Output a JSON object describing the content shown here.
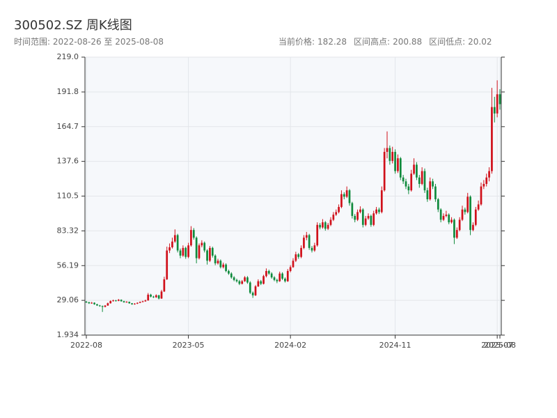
{
  "chart_data": {
    "type": "candlestick",
    "title": "300502.SZ 周K线图",
    "range_text": "时间范围: 2022-08-26 至 2025-08-08",
    "stats": [
      {
        "label": "当前价格:",
        "value": 182.28
      },
      {
        "label": "区间高点:",
        "value": 200.88
      },
      {
        "label": "区间低点:",
        "value": 20.02
      }
    ],
    "up_color": "#d0101a",
    "down_color": "#0f8a3c",
    "grid": true,
    "xlim": [
      0,
      154
    ],
    "xticks": [
      {
        "value": 0,
        "label": "2022-08"
      },
      {
        "value": 38,
        "label": "2023-05"
      },
      {
        "value": 76,
        "label": "2024-02"
      },
      {
        "value": 115,
        "label": "2024-11"
      },
      {
        "value": 153,
        "label": "2025-07"
      },
      {
        "value": 154,
        "label": "2025-08"
      }
    ],
    "ylim": [
      1.934,
      219
    ],
    "yticks": [
      1.934,
      29.06,
      56.19,
      83.32,
      110.5,
      137.6,
      164.7,
      191.8,
      {
        "value": 219,
        "label": "219.0"
      }
    ],
    "ohlc": [
      [
        28.0,
        28.6,
        27.0,
        27.5
      ],
      [
        27.5,
        28.0,
        26.3,
        26.8
      ],
      [
        26.8,
        27.8,
        26.4,
        27.2
      ],
      [
        27.2,
        27.5,
        25.6,
        26.0
      ],
      [
        26.0,
        26.4,
        24.7,
        25.1
      ],
      [
        25.1,
        25.5,
        24.1,
        24.6
      ],
      [
        24.6,
        25.0,
        20.02,
        24.0
      ],
      [
        24.0,
        25.4,
        23.6,
        25.0
      ],
      [
        25.0,
        27.3,
        24.8,
        26.8
      ],
      [
        26.8,
        29.0,
        26.5,
        28.5
      ],
      [
        28.5,
        29.6,
        28.1,
        29.0
      ],
      [
        29.0,
        29.4,
        28.2,
        28.7
      ],
      [
        28.7,
        30.1,
        28.4,
        29.5
      ],
      [
        29.5,
        29.8,
        28.0,
        28.4
      ],
      [
        28.4,
        28.7,
        27.2,
        27.6
      ],
      [
        27.6,
        28.4,
        27.3,
        27.9
      ],
      [
        27.9,
        28.1,
        26.4,
        26.8
      ],
      [
        26.8,
        27.0,
        25.6,
        26.0
      ],
      [
        26.0,
        26.9,
        25.7,
        26.5
      ],
      [
        26.5,
        27.5,
        26.2,
        27.1
      ],
      [
        27.1,
        28.2,
        26.9,
        27.8
      ],
      [
        27.8,
        28.8,
        27.5,
        28.3
      ],
      [
        28.3,
        29.6,
        28.0,
        29.0
      ],
      [
        29.0,
        34.8,
        28.8,
        33.5
      ],
      [
        33.5,
        34.2,
        31.4,
        32.0
      ],
      [
        32.0,
        32.6,
        30.9,
        31.5
      ],
      [
        31.5,
        33.8,
        31.0,
        33.0
      ],
      [
        33.0,
        33.4,
        29.8,
        30.5
      ],
      [
        30.5,
        37.2,
        30.2,
        36.0
      ],
      [
        36.0,
        47.5,
        35.6,
        45.5
      ],
      [
        45.5,
        71.0,
        45.0,
        68.0
      ],
      [
        68.0,
        73.5,
        66.0,
        70.5
      ],
      [
        70.5,
        78.0,
        69.5,
        75.0
      ],
      [
        75.0,
        84.5,
        74.0,
        80.0
      ],
      [
        80.0,
        81.0,
        66.5,
        68.0
      ],
      [
        68.0,
        69.5,
        62.0,
        64.0
      ],
      [
        64.0,
        72.0,
        63.0,
        70.0
      ],
      [
        70.0,
        71.0,
        61.5,
        63.0
      ],
      [
        63.0,
        74.0,
        62.0,
        72.0
      ],
      [
        72.0,
        87.0,
        71.0,
        84.0
      ],
      [
        84.0,
        85.5,
        76.5,
        78.0
      ],
      [
        78.0,
        79.0,
        58.0,
        62.0
      ],
      [
        62.0,
        73.5,
        61.0,
        72.0
      ],
      [
        72.0,
        76.0,
        70.5,
        74.0
      ],
      [
        74.0,
        75.0,
        66.5,
        68.0
      ],
      [
        68.0,
        69.0,
        57.0,
        60.0
      ],
      [
        60.0,
        71.5,
        59.0,
        70.0
      ],
      [
        70.0,
        71.0,
        62.5,
        64.0
      ],
      [
        64.0,
        65.0,
        56.5,
        58.0
      ],
      [
        58.0,
        61.5,
        57.0,
        60.0
      ],
      [
        60.0,
        61.0,
        54.0,
        55.0
      ],
      [
        55.0,
        58.5,
        54.0,
        57.0
      ],
      [
        57.0,
        58.0,
        51.0,
        52.0
      ],
      [
        52.0,
        53.0,
        49.0,
        50.0
      ],
      [
        50.0,
        51.0,
        46.0,
        47.0
      ],
      [
        47.0,
        48.0,
        44.0,
        45.0
      ],
      [
        45.0,
        46.0,
        43.0,
        44.0
      ],
      [
        44.0,
        45.0,
        41.0,
        42.0
      ],
      [
        42.0,
        45.0,
        41.5,
        44.0
      ],
      [
        44.0,
        48.0,
        43.5,
        47.0
      ],
      [
        47.0,
        48.0,
        42.0,
        43.0
      ],
      [
        43.0,
        44.0,
        34.0,
        35.0
      ],
      [
        35.0,
        36.0,
        31.0,
        33.0
      ],
      [
        33.0,
        41.0,
        32.5,
        40.0
      ],
      [
        40.0,
        45.5,
        39.5,
        44.0
      ],
      [
        44.0,
        45.0,
        41.0,
        42.0
      ],
      [
        42.0,
        49.0,
        41.5,
        48.0
      ],
      [
        48.0,
        54.0,
        47.0,
        52.0
      ],
      [
        52.0,
        53.0,
        49.0,
        50.0
      ],
      [
        50.0,
        51.0,
        46.0,
        47.0
      ],
      [
        47.0,
        48.0,
        44.0,
        45.0
      ],
      [
        45.0,
        46.0,
        42.5,
        44.0
      ],
      [
        44.0,
        51.5,
        43.5,
        50.0
      ],
      [
        50.0,
        51.0,
        45.0,
        46.0
      ],
      [
        46.0,
        47.0,
        43.0,
        44.0
      ],
      [
        44.0,
        53.5,
        43.5,
        52.0
      ],
      [
        52.0,
        56.5,
        51.0,
        55.0
      ],
      [
        55.0,
        62.0,
        54.5,
        60.0
      ],
      [
        60.0,
        67.0,
        59.0,
        65.0
      ],
      [
        65.0,
        66.0,
        61.5,
        63.0
      ],
      [
        63.0,
        72.0,
        62.0,
        70.0
      ],
      [
        70.0,
        80.0,
        69.0,
        78.0
      ],
      [
        78.0,
        82.5,
        76.0,
        80.0
      ],
      [
        80.0,
        81.0,
        68.5,
        70.0
      ],
      [
        70.0,
        71.5,
        66.5,
        68.0
      ],
      [
        68.0,
        74.0,
        67.0,
        72.0
      ],
      [
        72.0,
        90.0,
        71.0,
        88.0
      ],
      [
        88.0,
        89.5,
        84.5,
        86.0
      ],
      [
        86.0,
        92.5,
        85.0,
        90.0
      ],
      [
        90.0,
        91.0,
        83.5,
        85.0
      ],
      [
        85.0,
        89.5,
        84.0,
        88.0
      ],
      [
        88.0,
        94.0,
        87.0,
        92.0
      ],
      [
        92.0,
        98.0,
        91.0,
        96.0
      ],
      [
        96.0,
        100.0,
        95.0,
        98.0
      ],
      [
        98.0,
        104.0,
        97.0,
        102.0
      ],
      [
        102.0,
        115.0,
        101.0,
        112.0
      ],
      [
        112.0,
        113.5,
        108.0,
        110.0
      ],
      [
        110.0,
        118.0,
        109.0,
        115.0
      ],
      [
        115.0,
        116.0,
        103.0,
        105.0
      ],
      [
        105.0,
        106.0,
        93.0,
        95.0
      ],
      [
        95.0,
        96.5,
        90.0,
        92.0
      ],
      [
        92.0,
        100.0,
        91.0,
        98.0
      ],
      [
        98.0,
        102.5,
        97.0,
        100.0
      ],
      [
        100.0,
        101.0,
        86.0,
        88.0
      ],
      [
        88.0,
        95.0,
        87.0,
        93.0
      ],
      [
        93.0,
        97.0,
        92.0,
        95.0
      ],
      [
        95.0,
        96.0,
        86.5,
        88.0
      ],
      [
        88.0,
        99.0,
        87.0,
        97.0
      ],
      [
        97.0,
        102.0,
        96.0,
        100.0
      ],
      [
        100.0,
        101.5,
        96.5,
        98.0
      ],
      [
        98.0,
        118.0,
        97.0,
        115.0
      ],
      [
        115.0,
        148.0,
        114.0,
        145.0
      ],
      [
        145.0,
        161.0,
        140.0,
        148.0
      ],
      [
        148.0,
        150.0,
        135.0,
        138.0
      ],
      [
        138.0,
        149.0,
        136.0,
        145.0
      ],
      [
        145.0,
        147.0,
        128.0,
        130.0
      ],
      [
        130.0,
        143.0,
        128.5,
        140.0
      ],
      [
        140.0,
        141.0,
        123.0,
        125.0
      ],
      [
        125.0,
        127.0,
        120.0,
        122.0
      ],
      [
        122.0,
        124.0,
        116.0,
        118.0
      ],
      [
        118.0,
        120.0,
        112.0,
        115.0
      ],
      [
        115.0,
        131.0,
        114.0,
        128.0
      ],
      [
        128.0,
        140.0,
        127.0,
        135.0
      ],
      [
        135.0,
        137.0,
        123.0,
        125.0
      ],
      [
        125.0,
        127.0,
        117.0,
        120.0
      ],
      [
        120.0,
        133.0,
        119.0,
        130.0
      ],
      [
        130.0,
        132.0,
        113.0,
        115.0
      ],
      [
        115.0,
        117.0,
        106.0,
        108.0
      ],
      [
        108.0,
        125.0,
        107.0,
        122.0
      ],
      [
        122.0,
        124.0,
        116.0,
        118.0
      ],
      [
        118.0,
        120.0,
        106.0,
        108.0
      ],
      [
        108.0,
        109.0,
        98.0,
        100.0
      ],
      [
        100.0,
        101.0,
        90.0,
        92.0
      ],
      [
        92.0,
        97.0,
        91.0,
        95.0
      ],
      [
        95.0,
        99.0,
        94.0,
        96.0
      ],
      [
        96.0,
        97.0,
        88.5,
        90.0
      ],
      [
        90.0,
        94.0,
        89.0,
        92.0
      ],
      [
        92.0,
        93.0,
        73.0,
        78.0
      ],
      [
        78.0,
        86.0,
        77.0,
        84.0
      ],
      [
        84.0,
        94.0,
        83.0,
        92.0
      ],
      [
        92.0,
        103.0,
        91.0,
        100.0
      ],
      [
        100.0,
        101.5,
        96.0,
        98.0
      ],
      [
        98.0,
        113.0,
        97.0,
        110.0
      ],
      [
        110.0,
        111.0,
        80.0,
        84.0
      ],
      [
        84.0,
        90.0,
        83.0,
        88.0
      ],
      [
        88.0,
        102.0,
        87.0,
        100.0
      ],
      [
        100.0,
        107.0,
        99.0,
        104.0
      ],
      [
        104.0,
        121.0,
        103.0,
        118.0
      ],
      [
        118.0,
        123.0,
        116.0,
        120.0
      ],
      [
        120.0,
        128.0,
        118.0,
        125.0
      ],
      [
        125.0,
        133.0,
        122.0,
        130.0
      ],
      [
        130.0,
        195.0,
        128.0,
        180.0
      ],
      [
        180.0,
        188.0,
        168.0,
        175.0
      ],
      [
        175.0,
        200.88,
        172.0,
        190.0
      ],
      [
        190.0,
        194.0,
        178.0,
        182.28
      ]
    ]
  }
}
